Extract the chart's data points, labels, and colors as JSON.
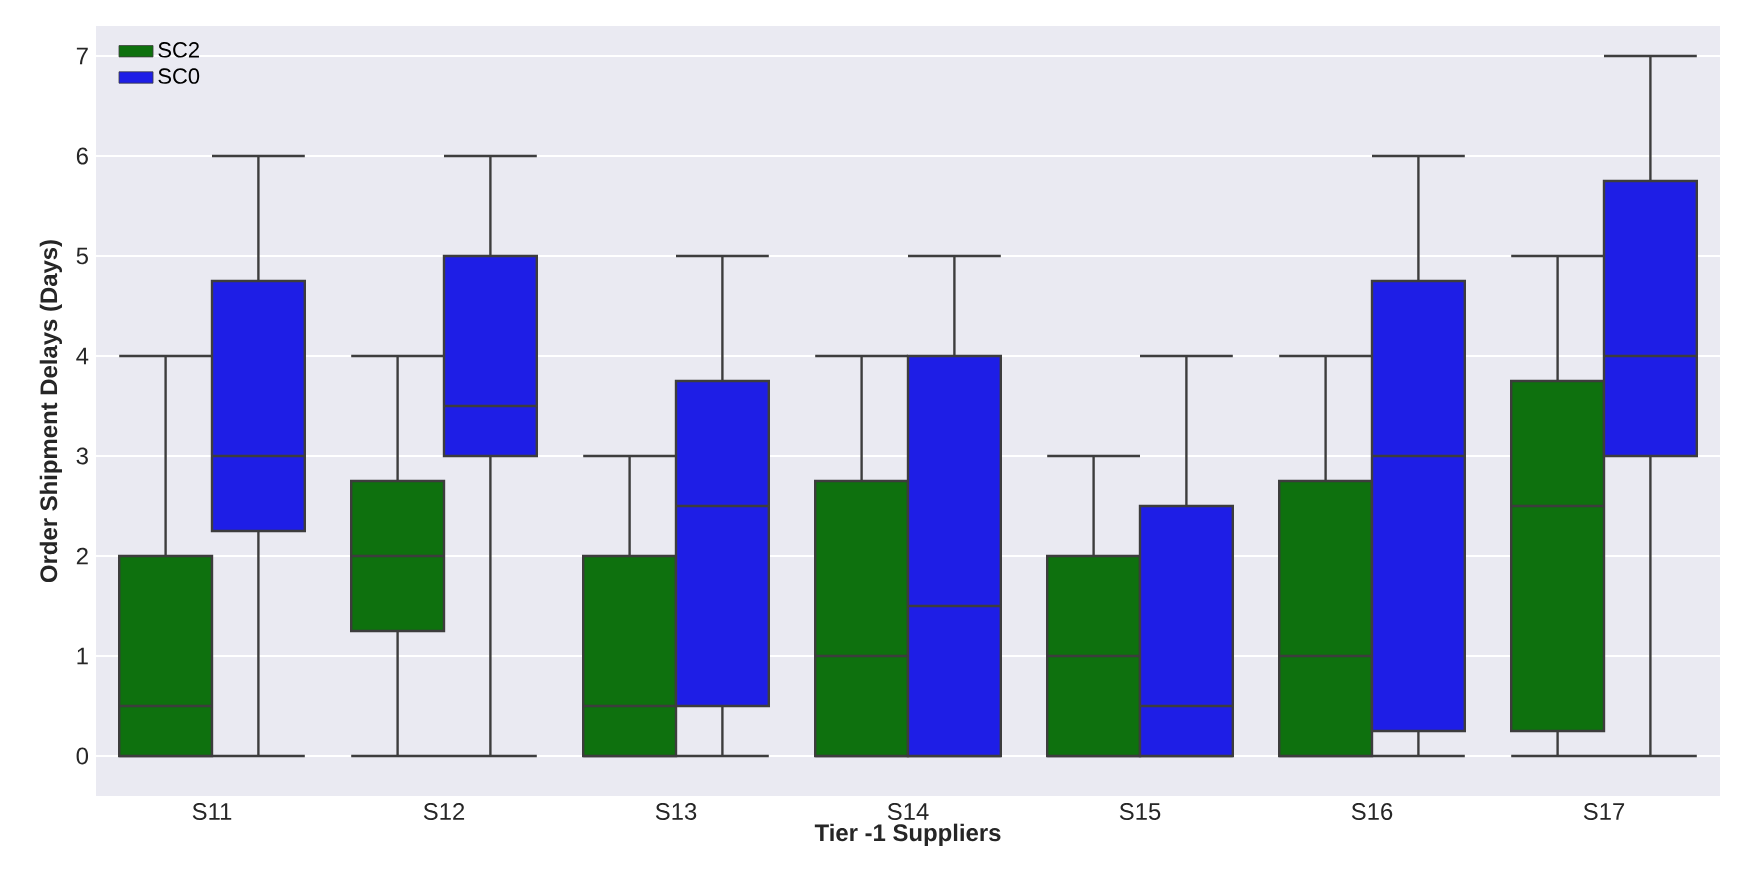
{
  "chart_data": {
    "type": "box",
    "xlabel": "Tier -1 Suppliers",
    "ylabel": "Order Shipment Delays (Days)",
    "categories": [
      "S11",
      "S12",
      "S13",
      "S14",
      "S15",
      "S16",
      "S17"
    ],
    "ylim": [
      -0.4,
      7.3
    ],
    "yticks": [
      0,
      1,
      2,
      3,
      4,
      5,
      6,
      7
    ],
    "grid": "y",
    "legend": "top left",
    "series": [
      {
        "name": "SC2",
        "color": "#0e710e",
        "boxes": [
          {
            "low": 0,
            "q1": 0,
            "median": 0.5,
            "q3": 2,
            "high": 4
          },
          {
            "low": 0,
            "q1": 1.25,
            "median": 2,
            "q3": 2.75,
            "high": 4
          },
          {
            "low": 0,
            "q1": 0,
            "median": 0.5,
            "q3": 2,
            "high": 3
          },
          {
            "low": 0,
            "q1": 0,
            "median": 1,
            "q3": 2.75,
            "high": 4
          },
          {
            "low": 0,
            "q1": 0,
            "median": 1,
            "q3": 2,
            "high": 3
          },
          {
            "low": 0,
            "q1": 0,
            "median": 1,
            "q3": 2.75,
            "high": 4
          },
          {
            "low": 0,
            "q1": 0.25,
            "median": 2.5,
            "q3": 3.75,
            "high": 5
          }
        ]
      },
      {
        "name": "SC0",
        "color": "#1e1ee6",
        "boxes": [
          {
            "low": 0,
            "q1": 2.25,
            "median": 3,
            "q3": 4.75,
            "high": 6
          },
          {
            "low": 0,
            "q1": 3,
            "median": 3.5,
            "q3": 5,
            "high": 6
          },
          {
            "low": 0,
            "q1": 0.5,
            "median": 2.5,
            "q3": 3.75,
            "high": 5
          },
          {
            "low": 0,
            "q1": 0,
            "median": 1.5,
            "q3": 4,
            "high": 5
          },
          {
            "low": 0,
            "q1": 0,
            "median": 0.5,
            "q3": 2.5,
            "high": 4
          },
          {
            "low": 0,
            "q1": 0.25,
            "median": 3,
            "q3": 4.75,
            "high": 6
          },
          {
            "low": 0,
            "q1": 3,
            "median": 4,
            "q3": 5.75,
            "high": 7
          }
        ]
      }
    ]
  }
}
